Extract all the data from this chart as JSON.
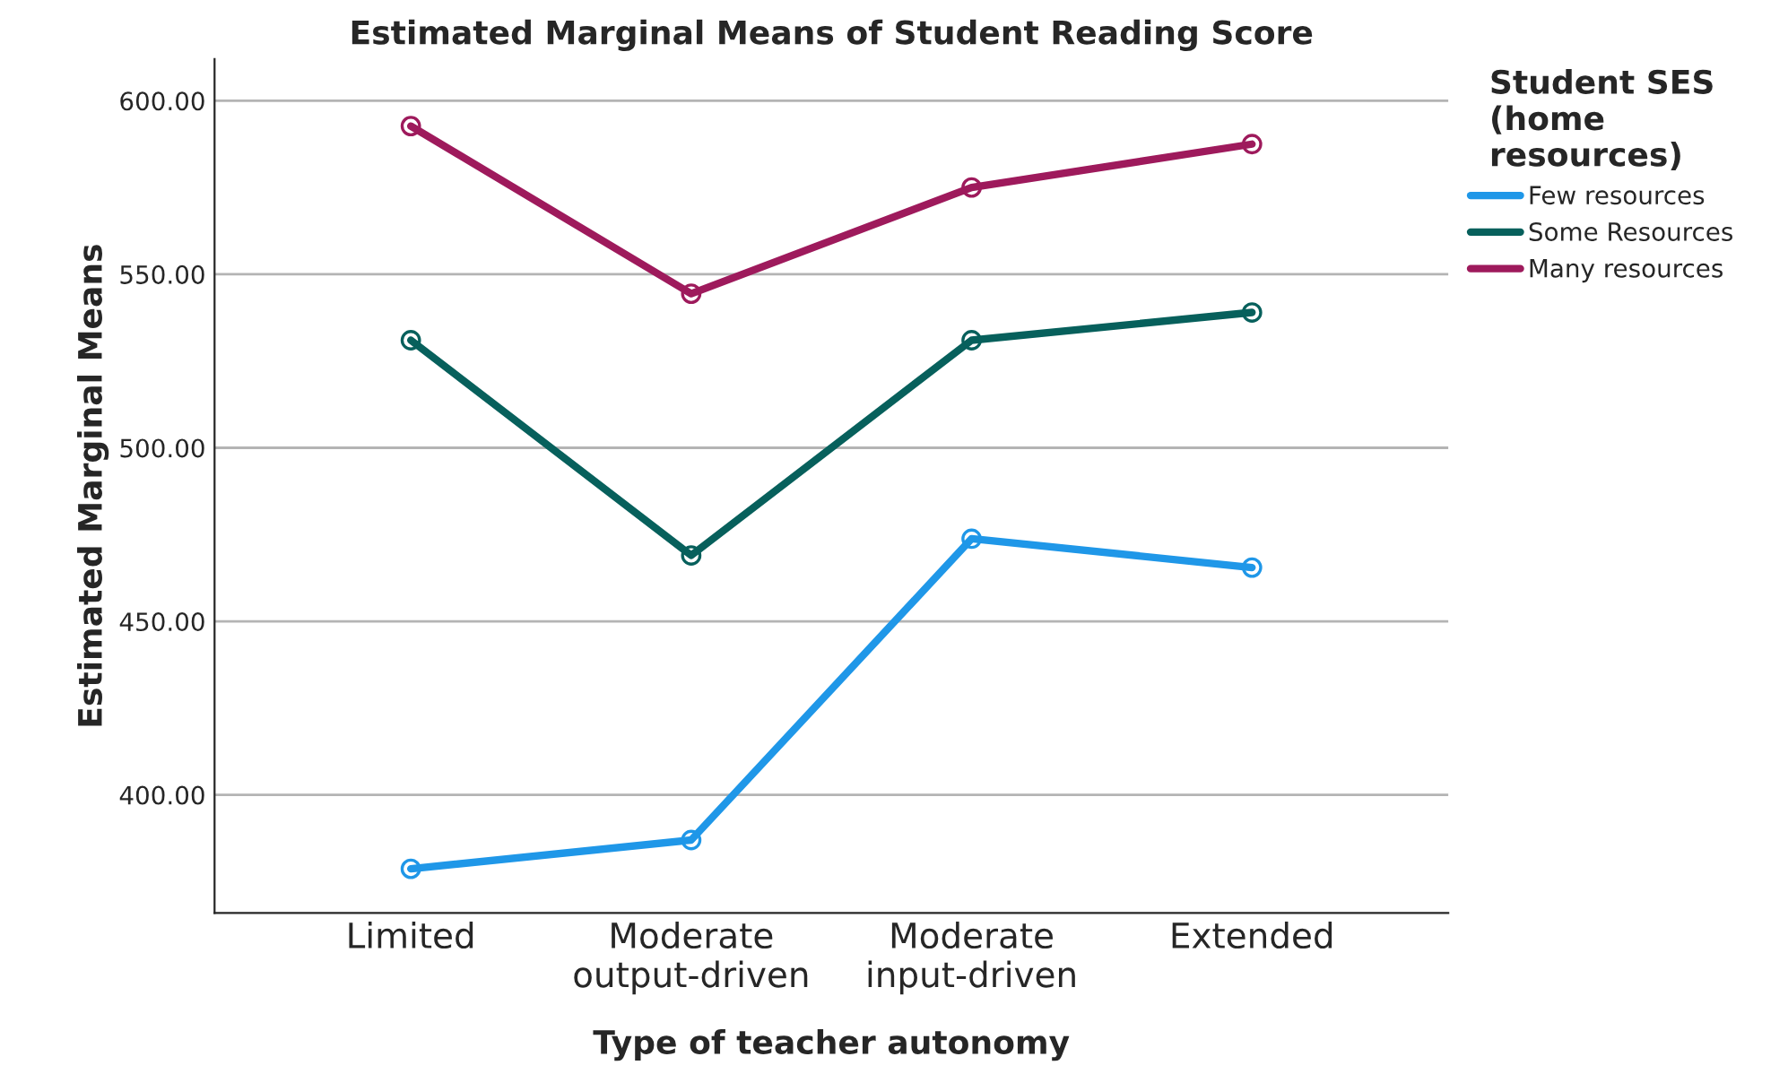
{
  "chart_data": {
    "type": "line",
    "title": "Estimated Marginal Means of Student Reading Score",
    "xlabel": "Type of teacher autonomy",
    "ylabel": "Estimated Marginal Means",
    "legend_title": "Student SES\n(home\nresources)",
    "categories": [
      "Limited",
      "Moderate\noutput-driven",
      "Moderate\ninput-driven",
      "Extended"
    ],
    "series": [
      {
        "name": "Few resources",
        "color": "#1f97e8",
        "values": [
          378.7,
          387,
          473.8,
          465.5
        ]
      },
      {
        "name": "Some Resources",
        "color": "#07605c",
        "values": [
          531,
          469,
          531,
          539
        ]
      },
      {
        "name": "Many resources",
        "color": "#9e1a5c",
        "values": [
          592.7,
          544.4,
          575,
          587.5
        ]
      }
    ],
    "ylim": [
      366,
      612
    ],
    "yticks": [
      {
        "value": 400,
        "label": "400.00"
      },
      {
        "value": 450,
        "label": "450.00"
      },
      {
        "value": 500,
        "label": "500.00"
      },
      {
        "value": 550,
        "label": "550.00"
      },
      {
        "value": 600,
        "label": "600.00"
      }
    ],
    "grid": "y",
    "legend": "right",
    "marker": "circle",
    "line_style": "solid"
  }
}
